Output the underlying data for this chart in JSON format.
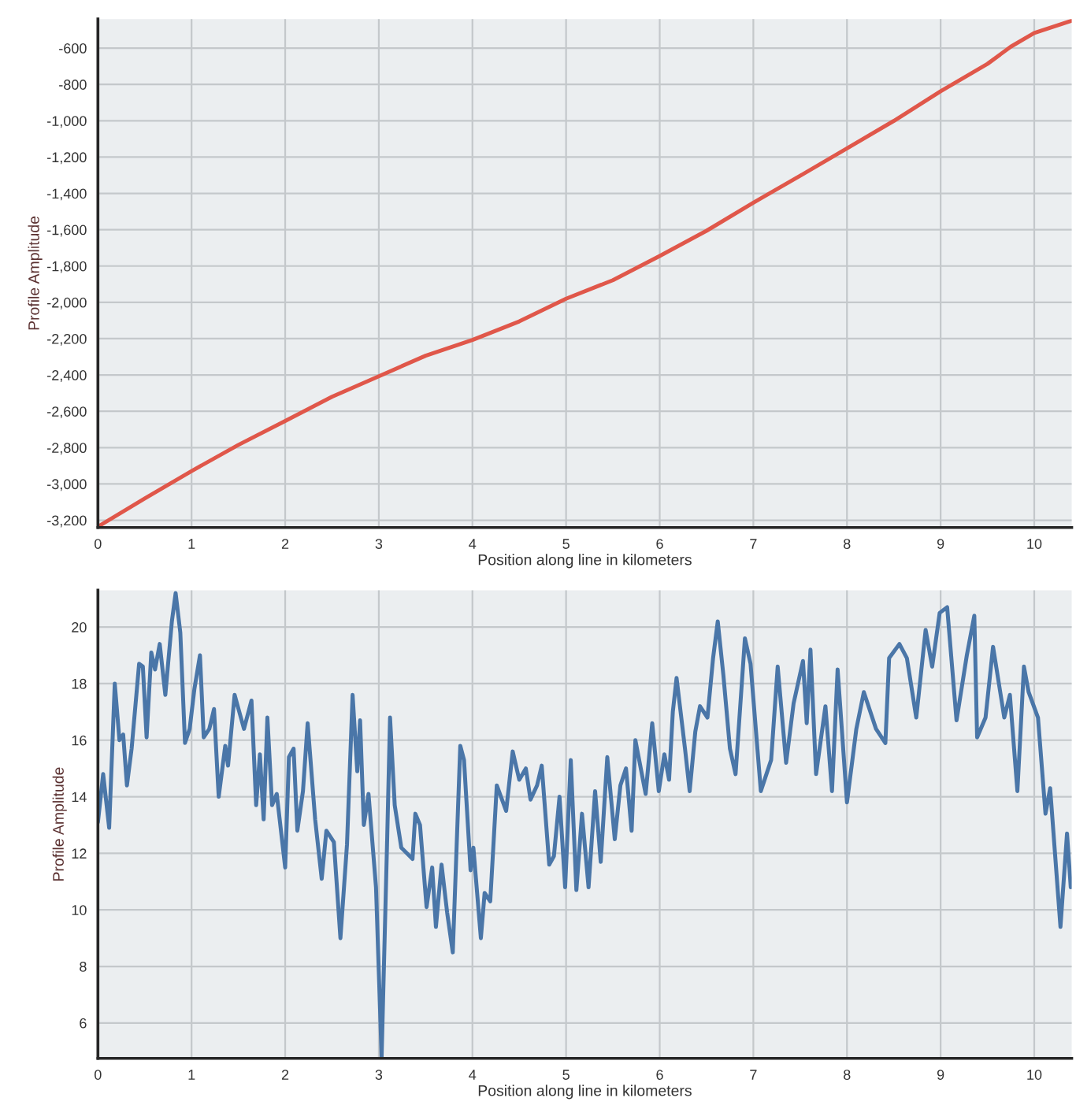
{
  "chart_data": [
    {
      "type": "line",
      "xlabel": "Position along line in kilometers",
      "ylabel": "Profile Amplitude",
      "x": [
        0,
        0.5,
        1,
        1.5,
        2,
        2.5,
        3,
        3.5,
        4,
        4.5,
        5,
        5.5,
        6,
        6.5,
        7,
        7.5,
        8,
        8.5,
        9,
        9.5,
        9.75,
        10,
        10.4
      ],
      "series": [
        {
          "color": "#e0574a",
          "values": [
            -3235,
            -3080,
            -2929,
            -2785,
            -2653,
            -2520,
            -2407,
            -2294,
            -2207,
            -2105,
            -1980,
            -1878,
            -1745,
            -1606,
            -1451,
            -1303,
            -1152,
            -1001,
            -838,
            -687,
            -592,
            -517,
            -449
          ]
        }
      ],
      "xlim": [
        0,
        10.4
      ],
      "xticks": [
        0,
        1,
        2,
        3,
        4,
        5,
        6,
        7,
        8,
        9,
        10
      ],
      "ylim": [
        -3240,
        -440
      ],
      "yticks": [
        {
          "value": -3200,
          "label": "-3,200"
        },
        {
          "value": -3000,
          "label": "-3,000"
        },
        {
          "value": -2800,
          "label": "-2,800"
        },
        {
          "value": -2600,
          "label": "-2,600"
        },
        {
          "value": -2400,
          "label": "-2,400"
        },
        {
          "value": -2200,
          "label": "-2,200"
        },
        {
          "value": -2000,
          "label": "-2,000"
        },
        {
          "value": -1800,
          "label": "-1,800"
        },
        {
          "value": -1600,
          "label": "-1,600"
        },
        {
          "value": -1400,
          "label": "-1,400"
        },
        {
          "value": -1200,
          "label": "-1,200"
        },
        {
          "value": -1000,
          "label": "-1,000"
        },
        {
          "value": -800,
          "label": "-800"
        },
        {
          "value": -600,
          "label": "-600"
        }
      ],
      "grid": true
    },
    {
      "type": "line",
      "xlabel": "Position along line in kilometers",
      "ylabel": "Profile Amplitude",
      "x": [
        0,
        0.056,
        0.12,
        0.18,
        0.23,
        0.27,
        0.31,
        0.36,
        0.44,
        0.48,
        0.52,
        0.57,
        0.61,
        0.66,
        0.72,
        0.79,
        0.83,
        0.88,
        0.93,
        0.98,
        1.03,
        1.09,
        1.13,
        1.19,
        1.24,
        1.29,
        1.36,
        1.39,
        1.46,
        1.51,
        1.56,
        1.64,
        1.69,
        1.73,
        1.77,
        1.81,
        1.86,
        1.91,
        2.0,
        2.04,
        2.09,
        2.13,
        2.19,
        2.24,
        2.32,
        2.39,
        2.44,
        2.52,
        2.59,
        2.66,
        2.72,
        2.77,
        2.8,
        2.84,
        2.89,
        2.97,
        3.03,
        3.09,
        3.12,
        3.17,
        3.24,
        3.36,
        3.39,
        3.44,
        3.51,
        3.57,
        3.61,
        3.67,
        3.73,
        3.79,
        3.87,
        3.91,
        3.98,
        4.01,
        4.09,
        4.13,
        4.19,
        4.26,
        4.36,
        4.43,
        4.5,
        4.57,
        4.62,
        4.69,
        4.74,
        4.82,
        4.87,
        4.93,
        4.99,
        5.05,
        5.11,
        5.17,
        5.24,
        5.31,
        5.37,
        5.44,
        5.52,
        5.58,
        5.64,
        5.7,
        5.74,
        5.85,
        5.92,
        5.99,
        6.05,
        6.1,
        6.14,
        6.18,
        6.27,
        6.32,
        6.38,
        6.43,
        6.51,
        6.57,
        6.62,
        6.68,
        6.75,
        6.81,
        6.91,
        6.97,
        7.08,
        7.19,
        7.26,
        7.35,
        7.43,
        7.53,
        7.57,
        7.61,
        7.67,
        7.77,
        7.84,
        7.9,
        8.0,
        8.1,
        8.18,
        8.31,
        8.41,
        8.45,
        8.56,
        8.64,
        8.74,
        8.84,
        8.91,
        8.99,
        9.07,
        9.17,
        9.28,
        9.36,
        9.39,
        9.48,
        9.56,
        9.68,
        9.74,
        9.82,
        9.89,
        9.94,
        10.04,
        10.12,
        10.17,
        10.28,
        10.35,
        10.39
      ],
      "series": [
        {
          "color": "#4a76a8",
          "values": [
            13.1,
            14.8,
            12.9,
            18.0,
            16.0,
            16.2,
            14.4,
            15.7,
            18.7,
            18.6,
            16.1,
            19.1,
            18.5,
            19.4,
            17.6,
            20.2,
            21.2,
            19.8,
            15.9,
            16.4,
            17.8,
            19.0,
            16.1,
            16.4,
            17.1,
            14.0,
            15.8,
            15.1,
            17.6,
            17.0,
            16.4,
            17.4,
            13.7,
            15.5,
            13.2,
            16.8,
            13.7,
            14.1,
            11.5,
            15.4,
            15.7,
            12.8,
            14.2,
            16.6,
            13.2,
            11.1,
            12.8,
            12.4,
            9.0,
            12.3,
            17.6,
            14.9,
            16.7,
            13.0,
            14.1,
            10.8,
            4.8,
            12.6,
            16.8,
            13.7,
            12.2,
            11.8,
            13.4,
            13.0,
            10.1,
            11.5,
            9.4,
            11.6,
            9.9,
            8.5,
            15.8,
            15.3,
            11.4,
            12.2,
            9.0,
            10.6,
            10.3,
            14.4,
            13.5,
            15.6,
            14.6,
            15.0,
            13.9,
            14.4,
            15.1,
            11.6,
            11.9,
            14.0,
            10.8,
            15.3,
            10.7,
            13.4,
            10.8,
            14.2,
            11.7,
            15.4,
            12.5,
            14.4,
            15.0,
            12.8,
            16.0,
            14.1,
            16.6,
            14.2,
            15.5,
            14.6,
            17.0,
            18.2,
            15.7,
            14.2,
            16.3,
            17.2,
            16.8,
            18.9,
            20.2,
            18.3,
            15.7,
            14.8,
            19.6,
            18.7,
            14.2,
            15.3,
            18.6,
            15.2,
            17.3,
            18.8,
            16.6,
            19.2,
            14.8,
            17.2,
            14.2,
            18.5,
            13.8,
            16.4,
            17.7,
            16.4,
            15.9,
            18.9,
            19.4,
            18.9,
            16.8,
            19.9,
            18.6,
            20.5,
            20.7,
            16.7,
            19.0,
            20.4,
            16.1,
            16.8,
            19.3,
            16.8,
            17.6,
            14.2,
            18.6,
            17.7,
            16.8,
            13.4,
            14.3,
            9.4,
            12.7,
            10.8
          ]
        }
      ],
      "xlim": [
        0,
        10.4
      ],
      "xticks": [
        0,
        1,
        2,
        3,
        4,
        5,
        6,
        7,
        8,
        9,
        10
      ],
      "ylim": [
        4.75,
        21.3
      ],
      "yticks": [
        6,
        8,
        10,
        12,
        14,
        16,
        18,
        20
      ],
      "grid": true
    }
  ]
}
